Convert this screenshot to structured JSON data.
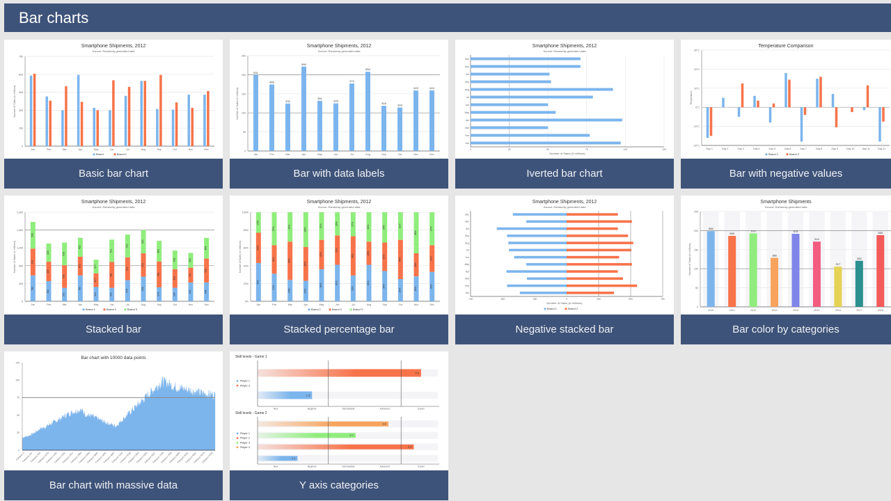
{
  "header": {
    "title": "Bar charts"
  },
  "colors": {
    "header_bg": "#3e5379",
    "blue": "#7cb5ec",
    "orange": "#f7734a",
    "green": "#90ed7d",
    "light_orange": "#f7a35c",
    "purple": "#8085e9",
    "pink": "#f15c80",
    "yellow": "#e4d354",
    "teal": "#2b908f",
    "red": "#f45b5b"
  },
  "cards": [
    {
      "caption": "Basic bar chart"
    },
    {
      "caption": "Bar with data labels"
    },
    {
      "caption": "Iverted bar chart"
    },
    {
      "caption": "Bar with negative values"
    },
    {
      "caption": "Stacked bar"
    },
    {
      "caption": "Stacked percentage bar"
    },
    {
      "caption": "Negative stacked bar"
    },
    {
      "caption": "Bar color by categories"
    },
    {
      "caption": "Bar chart with massive data"
    },
    {
      "caption": "Y axis categories"
    }
  ],
  "chart_data": [
    {
      "id": "basic",
      "type": "bar",
      "title": "Smartphone Shipments, 2012",
      "subtitle": "Source: Randomly generated data",
      "ylabel": "Number of Sales (in millions)",
      "xlabel": "",
      "categories": [
        "Jan",
        "Feb",
        "Mar",
        "Apr",
        "May",
        "Jun",
        "Jul",
        "Aug",
        "Sep",
        "Oct",
        "Nov",
        "Dec"
      ],
      "ylim": [
        0,
        750
      ],
      "yticks": [
        "0",
        "150",
        "300",
        "450",
        "600",
        "750"
      ],
      "series": [
        {
          "name": "Brand",
          "color": "#7cb5ec",
          "values": [
            590,
            415,
            300,
            595,
            320,
            300,
            420,
            545,
            310,
            305,
            430,
            430
          ]
        },
        {
          "name": "Brand 1",
          "color": "#f7734a",
          "values": [
            605,
            380,
            500,
            370,
            300,
            550,
            495,
            545,
            595,
            365,
            320,
            460
          ]
        }
      ],
      "legend": "bottom"
    },
    {
      "id": "datalabels",
      "type": "bar",
      "title": "Smartphone Shipments, 2012",
      "subtitle": "Source: Randomly generated data",
      "ylabel": "Number of Sales (in millions)",
      "categories": [
        "Jan",
        "Feb",
        "Mar",
        "Apr",
        "May",
        "Jun",
        "Jul",
        "Aug",
        "Sep",
        "Oct",
        "Nov",
        "Dec"
      ],
      "ylim": [
        0,
        250
      ],
      "yticks": [
        "0",
        "50",
        "100",
        "150",
        "200",
        "250"
      ],
      "values": [
        531,
        465,
        332,
        590,
        351,
        333,
        472,
        554,
        316,
        304,
        423,
        424
      ],
      "scale": 0.375,
      "labels": [
        "531",
        "465",
        "332",
        "590",
        "351",
        "333",
        "472",
        "554",
        "316",
        "304",
        "423",
        "424"
      ]
    },
    {
      "id": "inverted",
      "type": "bar",
      "orientation": "horizontal",
      "title": "Smartphone Shipments, 2012",
      "subtitle": "Source: Randomly generated data",
      "xlabel": "Number of Sales (in millions)",
      "categories": [
        "Jan",
        "Feb",
        "Mar",
        "Apr",
        "May",
        "Jun",
        "Jul",
        "Aug",
        "Sep",
        "Oct",
        "Nov",
        "Dec"
      ],
      "xlim": [
        0,
        125
      ],
      "xticks": [
        "0",
        "25",
        "50",
        "75",
        "100",
        "125"
      ],
      "values": [
        97,
        77,
        50,
        98,
        55,
        50,
        79,
        92,
        52,
        51,
        71,
        71
      ]
    },
    {
      "id": "negative",
      "type": "bar",
      "title": "Temperature Comparison",
      "ylabel": "Temperature",
      "categories": [
        "Day 1",
        "Day 2",
        "Day 3",
        "Day 4",
        "Day 5",
        "Day 6",
        "Day 7",
        "Day 8",
        "Day 9",
        "Day 10",
        "Day 11",
        "Day 12"
      ],
      "ylim": [
        -20,
        30
      ],
      "yticks": [
        "-20°C",
        "-10°C",
        "0°C",
        "10°C",
        "20°C",
        "30°C"
      ],
      "series": [
        {
          "name": "Brand 1",
          "color": "#7cb5ec",
          "values": [
            -16,
            5,
            -5,
            6,
            -8,
            18,
            -18,
            15,
            7,
            0,
            -1.5,
            -18
          ]
        },
        {
          "name": "Brand 2",
          "color": "#f7734a",
          "values": [
            -15,
            0,
            12.5,
            3.5,
            2,
            14.5,
            -4,
            16,
            -10.5,
            -2.5,
            11.5,
            -7.5
          ]
        }
      ],
      "legend": "bottom"
    },
    {
      "id": "stacked",
      "type": "bar",
      "stacked": true,
      "title": "Smartphone Shipments, 2012",
      "subtitle": "Source: Randomly generated data",
      "ylabel": "Number of Sales (in millions)",
      "categories": [
        "Jan",
        "Feb",
        "Mar",
        "Apr",
        "May",
        "Jun",
        "Jul",
        "Aug",
        "Sep",
        "Oct",
        "Nov",
        "Dec"
      ],
      "ylim": [
        0,
        2000
      ],
      "yticks": [
        "0",
        "400",
        "800",
        "1,200",
        "1,600",
        "2,000"
      ],
      "series": [
        {
          "name": "Brand 1",
          "color": "#7cb5ec",
          "values": [
            581,
            452,
            302,
            580,
            321,
            303,
            475,
            554,
            314,
            304,
            423,
            424
          ]
        },
        {
          "name": "Brand 2",
          "color": "#f7734a",
          "values": [
            603,
            437,
            508,
            423,
            307,
            581,
            512,
            523,
            581,
            418,
            332,
            536
          ]
        },
        {
          "name": "Brand 3",
          "color": "#90ed7d",
          "values": [
            599,
            409,
            508,
            423,
            307,
            501,
            512,
            523,
            463,
            418,
            332,
            464
          ]
        }
      ],
      "legend": "bottom"
    },
    {
      "id": "percent",
      "type": "bar",
      "stacked": "percent",
      "title": "Smartphone Shipments, 2012",
      "subtitle": "Source: Randomly generated data",
      "ylabel": "Number of Sales (in millions)",
      "categories": [
        "Jan",
        "Feb",
        "Mar",
        "Apr",
        "May",
        "Jun",
        "Jul",
        "Aug",
        "Sep",
        "Oct",
        "Nov",
        "Dec"
      ],
      "ylim": [
        0,
        100
      ],
      "yticks": [
        "0%",
        "20%",
        "40%",
        "60%",
        "80%",
        "100%"
      ],
      "series": [
        {
          "name": "Brand 1",
          "color": "#7cb5ec",
          "values": [
            43,
            31,
            24,
            23,
            36,
            41,
            29,
            41,
            34,
            25,
            28,
            33
          ]
        },
        {
          "name": "Brand 2",
          "color": "#f7734a",
          "values": [
            34,
            32,
            43,
            38,
            33,
            33,
            44,
            26,
            32,
            44,
            26,
            30
          ]
        },
        {
          "name": "Brand 3",
          "color": "#90ed7d",
          "values": [
            23,
            37,
            33,
            39,
            31,
            26,
            27,
            33,
            34,
            31,
            46,
            37
          ]
        }
      ],
      "legend": "bottom"
    },
    {
      "id": "negstacked",
      "type": "bar",
      "orientation": "horizontal",
      "title": "Smartphone Shipments, 2012",
      "subtitle": "Source: Randomly generated data",
      "xlabel": "Number of Sales (in millions)",
      "categories": [
        "Jan",
        "Feb",
        "Mar",
        "Apr",
        "May",
        "Jun",
        "Jul",
        "Aug",
        "Sep",
        "Oct",
        "Nov",
        "Dec"
      ],
      "xlim": [
        -750,
        750
      ],
      "xticks": [
        "-750",
        "-500",
        "-250",
        "0",
        "250",
        "500",
        "750"
      ],
      "series": [
        {
          "name": "Brand 1",
          "color": "#7cb5ec",
          "values": [
            -365,
            -465,
            -310,
            -470,
            -315,
            -410,
            -450,
            -455,
            -465,
            -545,
            -315,
            -420
          ]
        },
        {
          "name": "Brand 2",
          "color": "#f7734a",
          "values": [
            370,
            550,
            440,
            400,
            510,
            410,
            505,
            520,
            480,
            400,
            510,
            400
          ]
        }
      ],
      "legend": "bottom"
    },
    {
      "id": "colorbycat",
      "type": "bar",
      "title": "Smartphone Shipments",
      "subtitle": "Source: Randomly generated data",
      "ylabel": "Number of Sales (in millions)",
      "categories": [
        "2010",
        "2011",
        "2012",
        "2013",
        "2014",
        "2015",
        "2016",
        "2017",
        "2018"
      ],
      "ylim": [
        0,
        250
      ],
      "yticks": [
        "0",
        "50",
        "100",
        "150",
        "200",
        "250"
      ],
      "values": [
        596,
        559,
        579,
        386,
        575,
        514,
        317,
        363,
        565
      ],
      "scale": 0.333,
      "labels": [
        "596",
        "559",
        "579",
        "386",
        "575",
        "514",
        "317",
        "363",
        "565"
      ],
      "colors": [
        "#7cb5ec",
        "#f7734a",
        "#90ed7d",
        "#f7a35c",
        "#8085e9",
        "#f15c80",
        "#e4d354",
        "#2b908f",
        "#f45b5b"
      ]
    },
    {
      "id": "massive",
      "type": "area",
      "title": "Bar chart with 10000 data points",
      "ylim": [
        0,
        125
      ],
      "yticks": [
        "0",
        "25",
        "50",
        "75",
        "100",
        "125"
      ],
      "xtick_labels": [
        "Category 1",
        "Category 427",
        "Category 853",
        "Category 1279",
        "Category 1705",
        "Category 2131",
        "Category 2557",
        "Category 2983",
        "Category 3409",
        "Category 3835",
        "Category 4261",
        "Category 4687",
        "Category 5113",
        "Category 5539",
        "Category 5965",
        "Category 6391",
        "Category 6817",
        "Category 7243",
        "Category 7669",
        "Category 8095",
        "Category 8521",
        "Category 8947",
        "Category 9373",
        "Category 9799"
      ],
      "profile": [
        18,
        20,
        24,
        30,
        33,
        38,
        42,
        47,
        52,
        55,
        57,
        50,
        48,
        44,
        40,
        37,
        34,
        42,
        50,
        58,
        66,
        74,
        82,
        90,
        97,
        94,
        90,
        88,
        86,
        84,
        82,
        80,
        79,
        78
      ]
    },
    {
      "id": "ycategories",
      "type": "bar",
      "orientation": "horizontal",
      "games": [
        {
          "title": "Skill levels - Game 1",
          "legend": [
            "Player 1",
            "Player 2"
          ],
          "legend_colors": [
            "#7cb5ec",
            "#f7734a"
          ],
          "bars": [
            {
              "player": "Player 2",
              "value": 4.5,
              "label": "4.5",
              "color": "#f7734a"
            },
            {
              "player": "Player 1",
              "value": 1.5,
              "label": "1.5",
              "color": "#7cb5ec"
            }
          ]
        },
        {
          "title": "Skill levels - Game 2",
          "legend": [
            "Player 1",
            "Player 2",
            "Player 3",
            "Player 4"
          ],
          "legend_colors": [
            "#7cb5ec",
            "#f7734a",
            "#90ed7d",
            "#f7a35c"
          ],
          "bars": [
            {
              "player": "Player 4",
              "value": 3.6,
              "label": "3.6",
              "color": "#f7a35c"
            },
            {
              "player": "Player 3",
              "value": 2.7,
              "label": "2.7",
              "color": "#90ed7d"
            },
            {
              "player": "Player 2",
              "value": 4.3,
              "label": "4.3",
              "color": "#f7734a"
            },
            {
              "player": "Player 1",
              "value": 1.1,
              "label": "1.1",
              "color": "#7cb5ec"
            }
          ]
        }
      ],
      "xcategories": [
        "New",
        "Beginner",
        "Intermediate",
        "Advanced",
        "Expert"
      ],
      "xlim": [
        0,
        5
      ]
    }
  ]
}
